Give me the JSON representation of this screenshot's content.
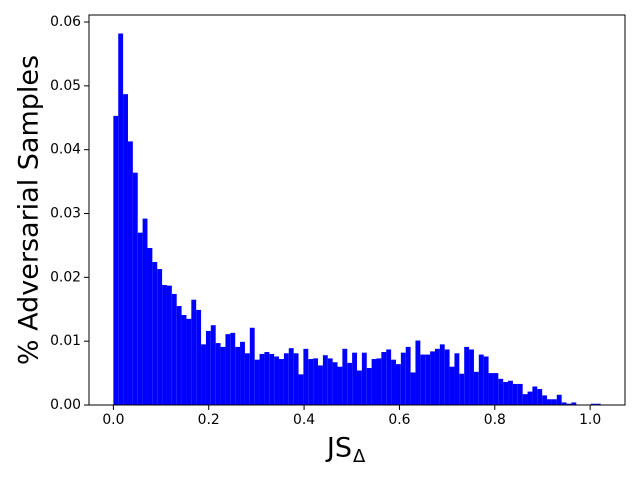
{
  "chart_data": {
    "type": "histogram",
    "xlabel": "JS",
    "xlabel_subscript": "Δ",
    "ylabel": "% Adversarial Samples",
    "color": "#0000ff",
    "bins": [
      0,
      0.01022,
      0.02044,
      0.03066,
      0.04088,
      0.0511,
      0.06132,
      0.07154,
      0.08176,
      0.09198,
      0.1022,
      0.11242,
      0.12264,
      0.13286,
      0.14308,
      0.1533,
      0.16352,
      0.17374,
      0.18396,
      0.19418,
      0.2044,
      0.21462,
      0.22484,
      0.23506,
      0.24528,
      0.2555,
      0.26572,
      0.27594,
      0.28616,
      0.29638,
      0.3066,
      0.31682,
      0.32704,
      0.33726,
      0.34748,
      0.3577,
      0.36792,
      0.37814,
      0.38836,
      0.39858,
      0.4088,
      0.41902,
      0.42924,
      0.43946,
      0.44968,
      0.4599,
      0.47012,
      0.48034,
      0.49056,
      0.50078,
      0.511,
      0.52122,
      0.53144,
      0.54166,
      0.55188,
      0.5621,
      0.57232,
      0.58254,
      0.59276,
      0.60298,
      0.6132,
      0.62342,
      0.63364,
      0.64386,
      0.65408,
      0.6643,
      0.67452,
      0.68474,
      0.69496,
      0.70518,
      0.7154,
      0.72562,
      0.73584,
      0.74606,
      0.75628,
      0.7665,
      0.77672,
      0.78694,
      0.79716,
      0.80738,
      0.8176,
      0.82782,
      0.83804,
      0.84826,
      0.85848,
      0.8687,
      0.87892,
      0.88914,
      0.89936,
      0.90958,
      0.9198,
      0.93002,
      0.94024,
      0.95046,
      0.96068,
      0.9709,
      0.98112,
      0.99134,
      1.00156,
      1.01178,
      1.022
    ],
    "counts": [
      0.0453,
      0.0582,
      0.0487,
      0.0413,
      0.0364,
      0.027,
      0.0292,
      0.0246,
      0.0224,
      0.0213,
      0.0188,
      0.0187,
      0.0174,
      0.0155,
      0.0141,
      0.0135,
      0.0165,
      0.0149,
      0.0095,
      0.0116,
      0.0125,
      0.0097,
      0.0091,
      0.0111,
      0.0113,
      0.0091,
      0.0099,
      0.0081,
      0.0121,
      0.0071,
      0.008,
      0.0083,
      0.008,
      0.0076,
      0.0072,
      0.0081,
      0.0089,
      0.0081,
      0.0048,
      0.0088,
      0.0072,
      0.0073,
      0.0062,
      0.0078,
      0.0073,
      0.0067,
      0.006,
      0.0088,
      0.0066,
      0.0082,
      0.0054,
      0.0082,
      0.0058,
      0.0072,
      0.0073,
      0.0083,
      0.0087,
      0.0071,
      0.0064,
      0.0082,
      0.0091,
      0.0051,
      0.0101,
      0.0079,
      0.0079,
      0.0084,
      0.0088,
      0.0095,
      0.0087,
      0.006,
      0.0081,
      0.0049,
      0.0091,
      0.0087,
      0.0052,
      0.0079,
      0.0076,
      0.005,
      0.005,
      0.0041,
      0.0036,
      0.0038,
      0.0033,
      0.0033,
      0.0017,
      0.0021,
      0.0029,
      0.0025,
      0.0015,
      0.0009,
      0.0009,
      0.0016,
      0.0004,
      0.0002,
      0.0004,
      0,
      0,
      0,
      0.0002,
      0.0002
    ],
    "xlim": [
      -0.0511,
      1.0731
    ],
    "xticks": [
      {
        "value": 0,
        "label": "0.0"
      },
      0.2,
      0.4,
      0.6,
      0.8,
      {
        "value": 1,
        "label": "1.0"
      }
    ],
    "ylim": [
      0,
      0.0611
    ],
    "yticks": [
      {
        "value": 0,
        "label": "0.00"
      },
      0.01,
      0.02,
      0.03,
      0.04,
      0.05,
      0.06
    ]
  }
}
